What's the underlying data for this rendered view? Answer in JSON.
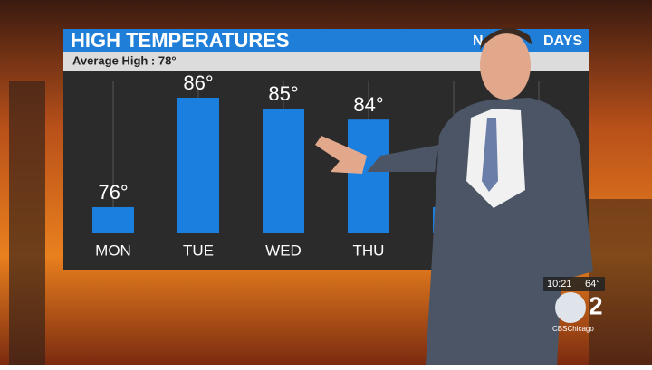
{
  "chart_data": {
    "type": "bar",
    "title": "HIGH TEMPERATURES",
    "header_right": [
      "N",
      "DAYS"
    ],
    "subtitle": "Average High : 78°",
    "categories": [
      "MON",
      "TUE",
      "WED",
      "THU",
      null
    ],
    "values": [
      76,
      86,
      85,
      84,
      76
    ],
    "value_labels": [
      "76°",
      "86°",
      "85°",
      "84°",
      null
    ],
    "color": "#1b7fe0",
    "ylim": [
      73.6,
      87.9
    ]
  },
  "overlay": {
    "time": "10:21",
    "temperature": "64°",
    "channel": "2",
    "station": "CBSChicago"
  }
}
